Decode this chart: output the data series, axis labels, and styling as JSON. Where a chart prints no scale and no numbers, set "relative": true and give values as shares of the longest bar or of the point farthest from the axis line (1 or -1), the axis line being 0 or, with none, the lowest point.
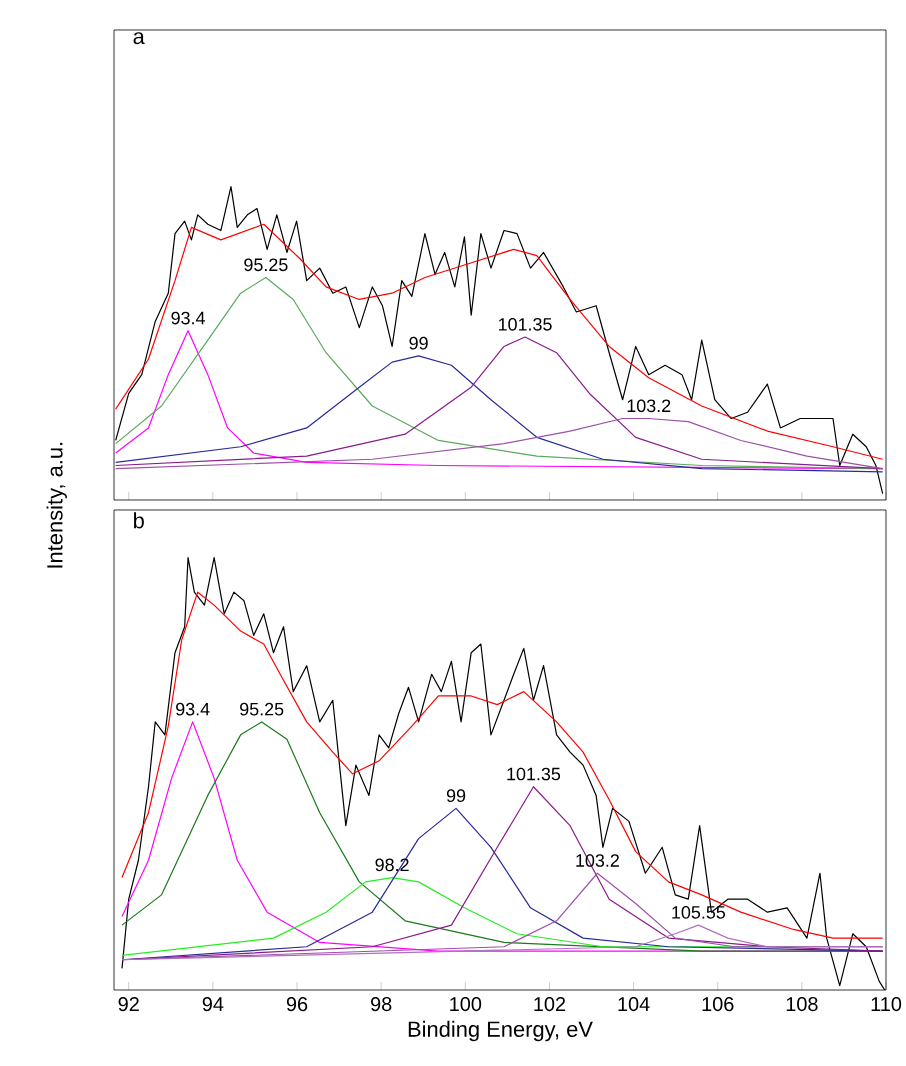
{
  "chart_data": [
    {
      "type": "line",
      "title": "a",
      "relative": true,
      "xlim": [
        91.65,
        110
      ],
      "xticks": [
        92,
        94,
        96,
        98,
        100,
        102,
        104,
        106,
        108,
        110
      ],
      "tick_labels": false,
      "grid": false,
      "marker": "none",
      "line_style": "solid",
      "series": [
        {
          "color": "#000000",
          "x": [
            91.69,
            92.0,
            92.31,
            92.63,
            92.94,
            93.1,
            93.33,
            93.49,
            93.64,
            93.88,
            94.19,
            94.43,
            94.58,
            94.82,
            95.05,
            95.29,
            95.52,
            95.76,
            95.99,
            96.23,
            96.54,
            96.85,
            97.16,
            97.48,
            97.79,
            98.03,
            98.26,
            98.49,
            98.73,
            99.04,
            99.28,
            99.51,
            99.75,
            99.98,
            100.14,
            100.37,
            100.61,
            100.92,
            101.23,
            101.55,
            101.86,
            102.33,
            102.64,
            103.11,
            103.42,
            103.74,
            104.05,
            104.36,
            104.75,
            105.15,
            105.38,
            105.62,
            105.93,
            106.32,
            106.71,
            107.18,
            107.49,
            107.96,
            108.43,
            108.74,
            108.9,
            109.21,
            109.53,
            109.76,
            109.92
          ],
          "values": [
            0.19,
            0.34,
            0.4,
            0.57,
            0.66,
            0.85,
            0.89,
            0.83,
            0.91,
            0.88,
            0.86,
            1.0,
            0.87,
            0.91,
            0.93,
            0.8,
            0.91,
            0.79,
            0.89,
            0.7,
            0.74,
            0.66,
            0.68,
            0.55,
            0.68,
            0.62,
            0.49,
            0.7,
            0.65,
            0.85,
            0.72,
            0.79,
            0.68,
            0.84,
            0.59,
            0.85,
            0.74,
            0.86,
            0.85,
            0.74,
            0.79,
            0.68,
            0.6,
            0.62,
            0.47,
            0.32,
            0.49,
            0.4,
            0.43,
            0.4,
            0.32,
            0.51,
            0.32,
            0.26,
            0.28,
            0.37,
            0.23,
            0.26,
            0.26,
            0.26,
            0.11,
            0.21,
            0.17,
            0.11,
            0.02
          ]
        },
        {
          "color": "#ff00ff",
          "x": [
            91.69,
            92.47,
            92.94,
            93.41,
            93.88,
            94.35,
            94.97,
            96.23,
            99.36,
            109.92
          ],
          "values": [
            0.15,
            0.23,
            0.4,
            0.54,
            0.4,
            0.23,
            0.15,
            0.12,
            0.11,
            0.1
          ]
        },
        {
          "color": "#5aaa5a",
          "x": [
            91.69,
            92.78,
            93.88,
            94.66,
            95.26,
            95.91,
            96.69,
            97.79,
            99.36,
            101.7,
            105.62,
            109.92
          ],
          "values": [
            0.18,
            0.3,
            0.51,
            0.66,
            0.71,
            0.64,
            0.47,
            0.3,
            0.19,
            0.14,
            0.11,
            0.1
          ]
        },
        {
          "color": "#2a2a9a",
          "x": [
            91.69,
            94.66,
            96.23,
            97.48,
            98.26,
            98.89,
            99.67,
            100.61,
            101.7,
            103.27,
            105.62,
            109.92
          ],
          "values": [
            0.12,
            0.17,
            0.23,
            0.36,
            0.44,
            0.46,
            0.43,
            0.32,
            0.2,
            0.13,
            0.1,
            0.09
          ]
        },
        {
          "color": "#8b1a8b",
          "x": [
            91.69,
            96.23,
            98.57,
            100.14,
            100.92,
            101.42,
            102.17,
            102.95,
            104.05,
            105.62,
            109.92
          ],
          "values": [
            0.11,
            0.14,
            0.21,
            0.36,
            0.49,
            0.52,
            0.47,
            0.34,
            0.2,
            0.13,
            0.1
          ]
        },
        {
          "color": "#9c50a8",
          "x": [
            91.69,
            97.79,
            100.92,
            102.49,
            103.74,
            104.36,
            105.3,
            106.55,
            108.12,
            109.92
          ],
          "values": [
            0.1,
            0.13,
            0.18,
            0.22,
            0.26,
            0.26,
            0.25,
            0.19,
            0.14,
            0.1
          ]
        },
        {
          "color": "#ff0000",
          "x": [
            91.69,
            92.47,
            93.1,
            93.49,
            94.19,
            95.21,
            96.07,
            96.69,
            97.48,
            98.26,
            99.04,
            99.98,
            101.15,
            101.7,
            102.49,
            103.42,
            104.36,
            105.62,
            107.18,
            108.74,
            109.92
          ],
          "values": [
            0.29,
            0.45,
            0.7,
            0.87,
            0.83,
            0.88,
            0.77,
            0.68,
            0.64,
            0.66,
            0.71,
            0.75,
            0.8,
            0.78,
            0.64,
            0.49,
            0.39,
            0.3,
            0.22,
            0.17,
            0.13
          ]
        }
      ],
      "annotations": [
        {
          "text": "93.4",
          "x": 93.41,
          "y": 0.54
        },
        {
          "text": "95.25",
          "x": 95.26,
          "y": 0.71
        },
        {
          "text": "99",
          "x": 98.89,
          "y": 0.46
        },
        {
          "text": "101.35",
          "x": 101.42,
          "y": 0.52
        },
        {
          "text": "103.2",
          "x": 104.36,
          "y": 0.26
        }
      ]
    },
    {
      "type": "line",
      "title": "b",
      "relative": true,
      "xlabel": "Binding Energy, eV",
      "ylabel": "Intensity, a.u.",
      "xlim": [
        91.65,
        110
      ],
      "xticks": [
        92,
        94,
        96,
        98,
        100,
        102,
        104,
        106,
        108,
        110
      ],
      "tick_labels": "x",
      "grid": false,
      "marker": "none",
      "line_style": "solid",
      "series": [
        {
          "color": "#000000",
          "x": [
            91.84,
            92.0,
            92.23,
            92.47,
            92.63,
            92.86,
            93.1,
            93.33,
            93.41,
            93.56,
            93.8,
            94.03,
            94.27,
            94.5,
            94.74,
            94.97,
            95.21,
            95.44,
            95.68,
            95.91,
            96.23,
            96.54,
            96.85,
            97.16,
            97.4,
            97.71,
            97.95,
            98.18,
            98.42,
            98.65,
            98.89,
            99.2,
            99.43,
            99.67,
            99.9,
            100.14,
            100.37,
            100.61,
            100.92,
            101.15,
            101.39,
            101.62,
            101.86,
            102.17,
            102.49,
            102.8,
            103.11,
            103.27,
            103.5,
            103.89,
            104.28,
            104.68,
            104.99,
            105.3,
            105.57,
            105.85,
            106.24,
            106.71,
            107.18,
            107.65,
            108.12,
            108.43,
            108.59,
            108.9,
            109.21,
            109.53,
            109.84,
            109.97
          ],
          "values": [
            0.05,
            0.21,
            0.3,
            0.47,
            0.62,
            0.59,
            0.78,
            0.84,
            1.0,
            0.92,
            0.89,
            1.0,
            0.87,
            0.92,
            0.9,
            0.82,
            0.87,
            0.78,
            0.84,
            0.69,
            0.75,
            0.62,
            0.67,
            0.38,
            0.52,
            0.45,
            0.59,
            0.56,
            0.64,
            0.7,
            0.62,
            0.73,
            0.69,
            0.76,
            0.62,
            0.78,
            0.8,
            0.59,
            0.67,
            0.73,
            0.79,
            0.67,
            0.75,
            0.59,
            0.55,
            0.52,
            0.45,
            0.33,
            0.42,
            0.39,
            0.27,
            0.33,
            0.22,
            0.21,
            0.38,
            0.18,
            0.21,
            0.21,
            0.18,
            0.19,
            0.12,
            0.27,
            0.12,
            0.01,
            0.13,
            0.1,
            0.02,
            0.0
          ]
        },
        {
          "color": "#ff00ff",
          "x": [
            91.84,
            92.47,
            93.02,
            93.52,
            94.03,
            94.58,
            95.29,
            96.54,
            99.36,
            109.92
          ],
          "values": [
            0.17,
            0.3,
            0.49,
            0.62,
            0.49,
            0.3,
            0.18,
            0.11,
            0.09,
            0.09
          ]
        },
        {
          "color": "#1a7a1a",
          "x": [
            91.84,
            92.78,
            93.88,
            94.66,
            95.16,
            95.76,
            96.54,
            97.48,
            98.57,
            100.92,
            105.62,
            109.92
          ],
          "values": [
            0.15,
            0.22,
            0.45,
            0.59,
            0.62,
            0.58,
            0.41,
            0.25,
            0.16,
            0.11,
            0.09,
            0.09
          ]
        },
        {
          "color": "#22ee22",
          "x": [
            91.84,
            95.44,
            96.69,
            97.63,
            98.26,
            98.89,
            99.98,
            101.23,
            103.27,
            109.92
          ],
          "values": [
            0.08,
            0.12,
            0.18,
            0.25,
            0.26,
            0.25,
            0.19,
            0.13,
            0.1,
            0.1
          ]
        },
        {
          "color": "#2a2a9a",
          "x": [
            91.84,
            96.23,
            97.79,
            98.89,
            99.78,
            100.61,
            101.55,
            102.8,
            104.83,
            109.92
          ],
          "values": [
            0.07,
            0.1,
            0.18,
            0.35,
            0.42,
            0.33,
            0.19,
            0.12,
            0.1,
            0.09
          ]
        },
        {
          "color": "#8b1a8b",
          "x": [
            91.84,
            97.79,
            99.67,
            100.76,
            101.62,
            102.49,
            103.42,
            104.83,
            107.18,
            109.92
          ],
          "values": [
            0.07,
            0.1,
            0.15,
            0.33,
            0.47,
            0.38,
            0.21,
            0.12,
            0.1,
            0.09
          ]
        },
        {
          "color": "#9c50a8",
          "x": [
            91.84,
            100.92,
            102.17,
            103.14,
            104.05,
            104.99,
            106.4,
            109.92
          ],
          "values": [
            0.07,
            0.1,
            0.16,
            0.27,
            0.2,
            0.12,
            0.1,
            0.1
          ]
        },
        {
          "color": "#b070c0",
          "x": [
            91.84,
            104.05,
            104.99,
            105.54,
            106.24,
            107.18,
            109.92
          ],
          "values": [
            0.07,
            0.1,
            0.13,
            0.15,
            0.12,
            0.1,
            0.1
          ]
        },
        {
          "color": "#ff0000",
          "x": [
            91.84,
            92.47,
            92.94,
            93.26,
            93.64,
            94.03,
            94.66,
            95.21,
            95.6,
            96.23,
            96.85,
            97.32,
            97.95,
            98.73,
            99.36,
            100.14,
            100.76,
            101.39,
            102.17,
            102.8,
            103.42,
            104.05,
            104.83,
            105.62,
            106.55,
            107.8,
            108.74,
            109.92
          ],
          "values": [
            0.26,
            0.41,
            0.61,
            0.81,
            0.92,
            0.89,
            0.83,
            0.8,
            0.73,
            0.62,
            0.55,
            0.5,
            0.53,
            0.61,
            0.68,
            0.68,
            0.66,
            0.69,
            0.62,
            0.55,
            0.44,
            0.32,
            0.25,
            0.22,
            0.18,
            0.14,
            0.12,
            0.12
          ]
        }
      ],
      "annotations": [
        {
          "text": "93.4",
          "x": 93.52,
          "y": 0.62
        },
        {
          "text": "95.25",
          "x": 95.16,
          "y": 0.62
        },
        {
          "text": "98.2",
          "x": 98.26,
          "y": 0.26
        },
        {
          "text": "99",
          "x": 99.78,
          "y": 0.42
        },
        {
          "text": "101.35",
          "x": 101.62,
          "y": 0.47
        },
        {
          "text": "103.2",
          "x": 103.14,
          "y": 0.27
        },
        {
          "text": "105.55",
          "x": 105.54,
          "y": 0.15
        }
      ]
    }
  ]
}
